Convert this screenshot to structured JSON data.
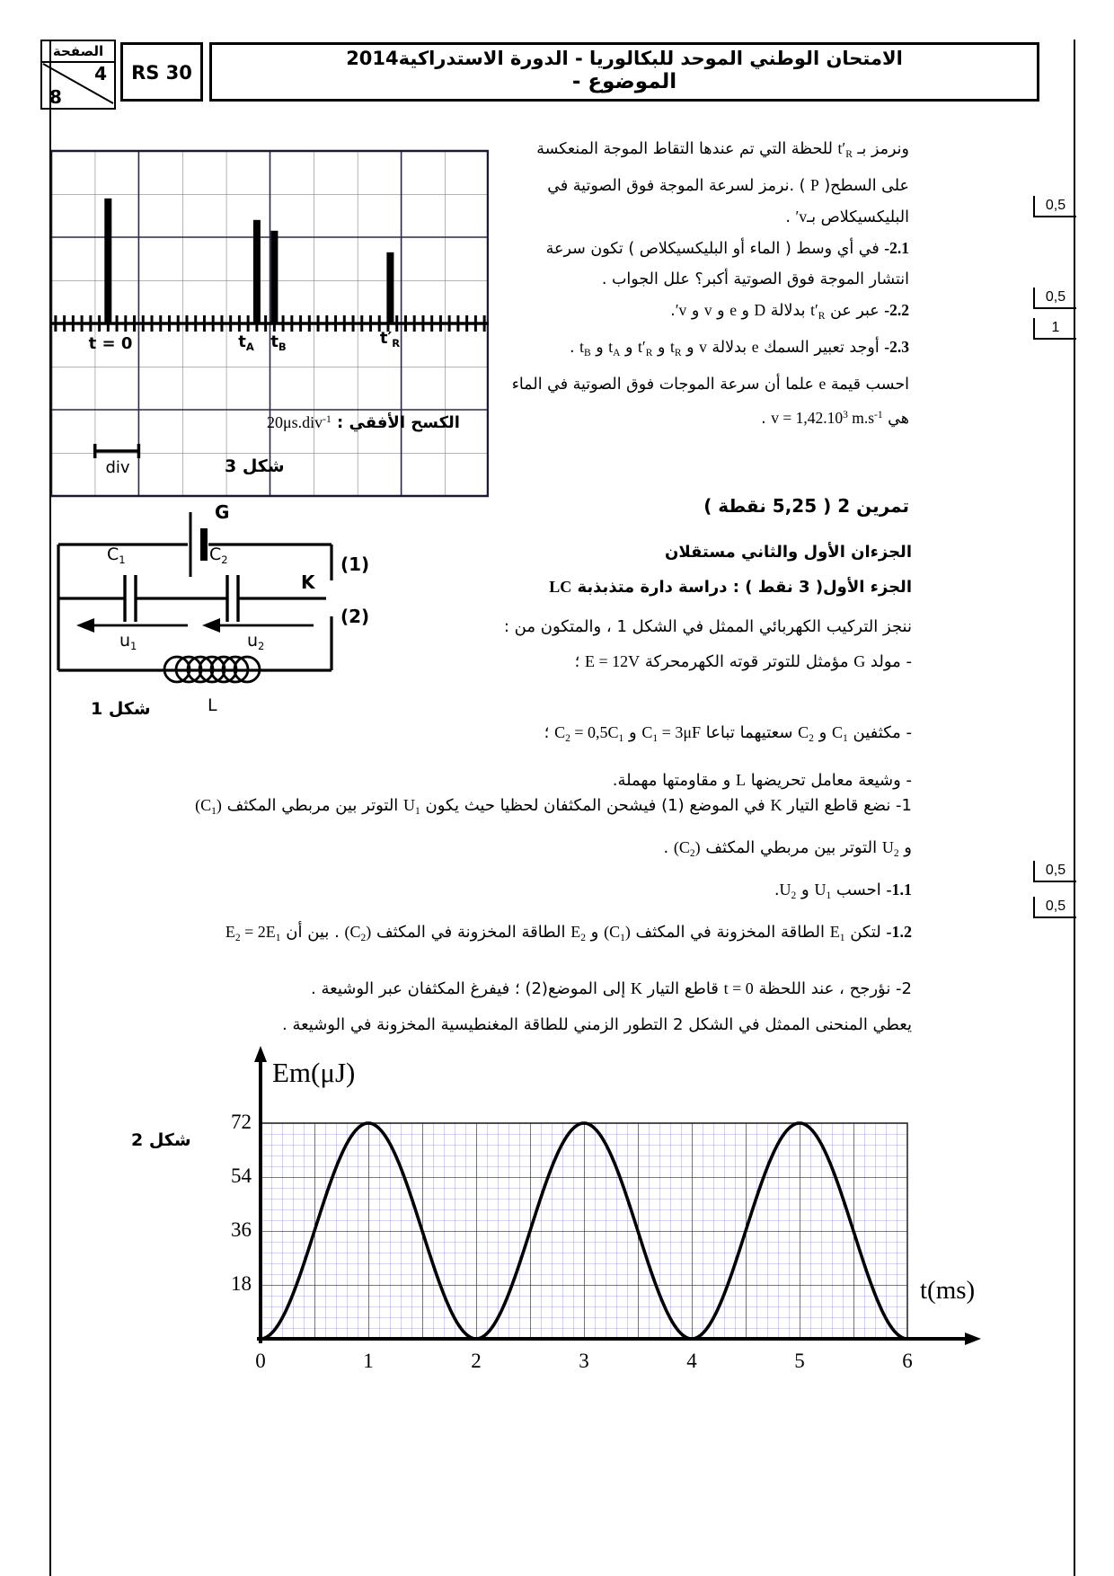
{
  "header": {
    "page_label": "الصفحة",
    "page_current": "4",
    "page_total": "8",
    "ref": "RS 30",
    "title_line1": "الامتحان الوطني الموحد للبكالوريا - الدورة الاستدراكية2014",
    "title_line2": "- الموضوع"
  },
  "scores": [
    "0,5",
    "0,5",
    "1",
    "0,5",
    "0,5"
  ],
  "wave": {
    "lines": [
      {
        "segs": [
          {
            "t": "ونرمز بـ "
          },
          {
            "t": "t′",
            "lat": 1
          },
          {
            "t": "R",
            "lat": 1,
            "sub": 1
          },
          {
            "t": " للحظة التي تم عندها التقاط الموجة المنعكسة"
          }
        ]
      },
      {
        "segs": [
          {
            "t": "على السطح( "
          },
          {
            "t": "P",
            "lat": 1
          },
          {
            "t": " ) .نرمز لسرعة الموجة فوق الصوتية في"
          }
        ]
      },
      {
        "segs": [
          {
            "t": "البليكسيكلاص بـ"
          },
          {
            "t": "v′",
            "lat": 1
          },
          {
            "t": " ."
          }
        ]
      },
      {
        "segs": [
          {
            "t": "2.1-",
            "lat": 1,
            "b": 1
          },
          {
            "t": "  في أي وسط ( الماء أو البليكسيكلاص ) تكون سرعة"
          }
        ]
      },
      {
        "segs": [
          {
            "t": "انتشار الموجة فوق الصوتية أكبر؟   علل الجواب ."
          }
        ]
      },
      {
        "segs": [
          {
            "t": "2.2-",
            "lat": 1,
            "b": 1
          },
          {
            "t": " عبر عن "
          },
          {
            "t": "t′",
            "lat": 1
          },
          {
            "t": "R",
            "lat": 1,
            "sub": 1
          },
          {
            "t": " بدلالة "
          },
          {
            "t": "D",
            "lat": 1
          },
          {
            "t": " و "
          },
          {
            "t": "e",
            "lat": 1
          },
          {
            "t": " و "
          },
          {
            "t": "v",
            "lat": 1
          },
          {
            "t": " و "
          },
          {
            "t": "v′",
            "lat": 1
          },
          {
            "t": "."
          }
        ]
      },
      {
        "segs": [
          {
            "t": "2.3-",
            "lat": 1,
            "b": 1
          },
          {
            "t": " أوجد تعبير السمك "
          },
          {
            "t": "e",
            "lat": 1
          },
          {
            "t": " بدلالة "
          },
          {
            "t": "v",
            "lat": 1
          },
          {
            "t": " و "
          },
          {
            "t": "t",
            "lat": 1
          },
          {
            "t": "R",
            "lat": 1,
            "sub": 1
          },
          {
            "t": " و "
          },
          {
            "t": "t′",
            "lat": 1
          },
          {
            "t": "R",
            "lat": 1,
            "sub": 1
          },
          {
            "t": " و "
          },
          {
            "t": "t",
            "lat": 1
          },
          {
            "t": "A",
            "lat": 1,
            "sub": 1
          },
          {
            "t": " و "
          },
          {
            "t": "t",
            "lat": 1
          },
          {
            "t": "B",
            "lat": 1,
            "sub": 1
          },
          {
            "t": " ."
          }
        ]
      },
      {
        "segs": [
          {
            "t": "احسب قيمة "
          },
          {
            "t": "e",
            "lat": 1
          },
          {
            "t": " علما أن سرعة الموجات فوق الصوتية في الماء"
          }
        ]
      },
      {
        "segs": [
          {
            "t": "هي "
          },
          {
            "t": "v = 1,42.10",
            "lat": 1
          },
          {
            "t": "3",
            "lat": 1,
            "sup": 1
          },
          {
            "t": " m.s",
            "lat": 1
          },
          {
            "t": "-1",
            "lat": 1,
            "sup": 1
          },
          {
            "t": " ."
          }
        ]
      }
    ]
  },
  "heading": {
    "lines": [
      {
        "segs": [
          {
            "t": "تمرين 2 (  5,25 نقطة )",
            "b": 1
          }
        ]
      }
    ]
  },
  "part1": {
    "lines": [
      {
        "segs": [
          {
            "t": "الجزءان الأول والثاني مستقلان",
            "b": 1
          }
        ]
      },
      {
        "segs": [
          {
            "t": "الجزء الأول( 3 نقط ) : دراسة دارة متذبذبة ",
            "b": 1
          },
          {
            "t": "LC",
            "lat": 1,
            "b": 1
          }
        ]
      },
      {
        "segs": [
          {
            "t": "ننجز التركيب الكهربائي الممثل في الشكل 1 ، والمتكون من :"
          }
        ]
      },
      {
        "segs": [
          {
            "t": "- مولد "
          },
          {
            "t": "G",
            "lat": 1
          },
          {
            "t": " مؤمثل للتوتر قوته الكهرمحركة "
          },
          {
            "t": "E = 12V",
            "lat": 1
          },
          {
            "t": " ؛"
          }
        ]
      },
      {
        "segs": [
          {
            "t": "- مكثفين "
          },
          {
            "t": "C",
            "lat": 1
          },
          {
            "t": "1",
            "lat": 1,
            "sub": 1
          },
          {
            "t": " و "
          },
          {
            "t": "C",
            "lat": 1
          },
          {
            "t": "2",
            "lat": 1,
            "sub": 1
          },
          {
            "t": " سعتيهما تباعا "
          },
          {
            "t": "C",
            "lat": 1
          },
          {
            "t": "1",
            "lat": 1,
            "sub": 1
          },
          {
            "t": " = 3μF",
            "lat": 1
          },
          {
            "t": " و "
          },
          {
            "t": "C",
            "lat": 1
          },
          {
            "t": "2",
            "lat": 1,
            "sub": 1
          },
          {
            "t": " = 0,5C",
            "lat": 1
          },
          {
            "t": "1",
            "lat": 1,
            "sub": 1
          },
          {
            "t": " ؛"
          }
        ]
      },
      {
        "segs": [
          {
            "t": "- وشيعة معامل تحريضها "
          },
          {
            "t": "L",
            "lat": 1
          },
          {
            "t": " و مقاومتها مهملة."
          }
        ]
      }
    ]
  },
  "q1": {
    "lines": [
      {
        "segs": [
          {
            "t": "1- نضع قاطع التيار "
          },
          {
            "t": "K",
            "lat": 1
          },
          {
            "t": " في الموضع (1) فيشحن المكثفان لحظيا حيث يكون "
          },
          {
            "t": "U",
            "lat": 1
          },
          {
            "t": "1",
            "lat": 1,
            "sub": 1
          },
          {
            "t": " التوتر بين مربطي المكثف "
          },
          {
            "t": "‎(C",
            "lat": 1
          },
          {
            "t": "1",
            "lat": 1,
            "sub": 1
          },
          {
            "t": ")‎",
            "lat": 1
          }
        ]
      },
      {
        "segs": [
          {
            "t": "و "
          },
          {
            "t": "U",
            "lat": 1
          },
          {
            "t": "2",
            "lat": 1,
            "sub": 1
          },
          {
            "t": " التوتر بين مربطي المكثف "
          },
          {
            "t": "‎(C",
            "lat": 1
          },
          {
            "t": "2",
            "lat": 1,
            "sub": 1
          },
          {
            "t": ")‎",
            "lat": 1
          },
          {
            "t": " ."
          }
        ]
      },
      {
        "segs": [
          {
            "t": "1.1-",
            "lat": 1,
            "b": 1
          },
          {
            "t": " احسب "
          },
          {
            "t": "U",
            "lat": 1
          },
          {
            "t": "1",
            "lat": 1,
            "sub": 1
          },
          {
            "t": " و "
          },
          {
            "t": "U",
            "lat": 1
          },
          {
            "t": "2",
            "lat": 1,
            "sub": 1
          },
          {
            "t": "."
          }
        ]
      },
      {
        "segs": [
          {
            "t": "1.2-",
            "lat": 1,
            "b": 1
          },
          {
            "t": " لتكن "
          },
          {
            "t": "E",
            "lat": 1
          },
          {
            "t": "1",
            "lat": 1,
            "sub": 1
          },
          {
            "t": " الطاقة المخزونة في المكثف "
          },
          {
            "t": "‎(C",
            "lat": 1
          },
          {
            "t": "1",
            "lat": 1,
            "sub": 1
          },
          {
            "t": ")‎",
            "lat": 1
          },
          {
            "t": " و "
          },
          {
            "t": "E",
            "lat": 1
          },
          {
            "t": "2",
            "lat": 1,
            "sub": 1
          },
          {
            "t": " الطاقة المخزونة في المكثف "
          },
          {
            "t": "‎(C",
            "lat": 1
          },
          {
            "t": "2",
            "lat": 1,
            "sub": 1
          },
          {
            "t": ")‎",
            "lat": 1
          },
          {
            "t": " . بين أن "
          },
          {
            "t": "E",
            "lat": 1
          },
          {
            "t": "2",
            "lat": 1,
            "sub": 1
          },
          {
            "t": " = 2E",
            "lat": 1
          },
          {
            "t": "1",
            "lat": 1,
            "sub": 1
          }
        ]
      },
      {
        "segs": [
          {
            "t": "2- نؤرجح ، عند اللحظة "
          },
          {
            "t": "t = 0",
            "lat": 1
          },
          {
            "t": " قاطع التيار "
          },
          {
            "t": "K",
            "lat": 1
          },
          {
            "t": " إلى الموضع(2) ؛ فيفرغ المكثفان عبر الوشيعة ."
          }
        ]
      },
      {
        "segs": [
          {
            "t": "يعطي المنحنى الممثل في الشكل 2 التطور الزمني للطاقة المغنطيسية المخزونة في الوشيعة ."
          }
        ]
      }
    ]
  },
  "fig3": {
    "labels": {
      "t0": "t = 0",
      "tA_base": "t",
      "tA_sub": "A",
      "tB_base": "t",
      "tB_sub": "B",
      "tR_base": "t′",
      "tR_sub": "R"
    },
    "sweep_ar": "الكسح الأفقي : ",
    "sweep_lat": "20μs.div",
    "sweep_exp": "-1",
    "div_label": "div",
    "caption": "شكل 3"
  },
  "fig1": {
    "labels": {
      "g": "G",
      "c_base": "C",
      "c1_sub": "1",
      "c2_sub": "2",
      "k": "K",
      "pos1": "(1)",
      "pos2": "(2)",
      "u_base": "u",
      "u1_sub": "1",
      "u2_sub": "2",
      "l": "L"
    },
    "caption": "شكل 1"
  },
  "fig2": {
    "title": "Em(μJ)",
    "xlabel": "t(ms)",
    "caption": "شكل 2"
  },
  "chart_data": [
    {
      "type": "pulse-oscillogram",
      "figure": "شكل 3",
      "sweep_horizontal": "20 μs.div-1",
      "grid": {
        "cols": 10,
        "rows": 8,
        "baseline_row": 4
      },
      "pulses": [
        {
          "label": "t = 0",
          "t_div": 1.3,
          "height_div": 2.9
        },
        {
          "label": "tA",
          "t_div": 4.7,
          "height_div": 2.4
        },
        {
          "label": "tB",
          "t_div": 5.1,
          "height_div": 2.15
        },
        {
          "label": "t'R",
          "t_div": 7.75,
          "height_div": 1.65
        }
      ]
    },
    {
      "type": "line",
      "figure": "شكل 2",
      "title": "Em(μJ)",
      "xlabel": "t(ms)",
      "xlim": [
        0,
        6
      ],
      "ylim": [
        0,
        72
      ],
      "x_ticks": [
        0,
        1,
        2,
        3,
        4,
        5,
        6
      ],
      "y_ticks": [
        18,
        36,
        54,
        72
      ],
      "series": [
        {
          "name": "Em",
          "formula": "Em(t) = 36·(1 − cos(π·t)) μJ",
          "amplitude_uJ": 72,
          "period_ms": 2,
          "zeros_ms": [
            0,
            2,
            4,
            6
          ],
          "maxima_ms": [
            1,
            3,
            5
          ]
        }
      ],
      "grid": "fine blue minor grid, dark major lines every 0.5 ms and 18 μJ",
      "colors": {
        "minor_grid": "#8b8bde",
        "major_grid": "#2a2a2a",
        "curve": "#000000"
      }
    }
  ]
}
